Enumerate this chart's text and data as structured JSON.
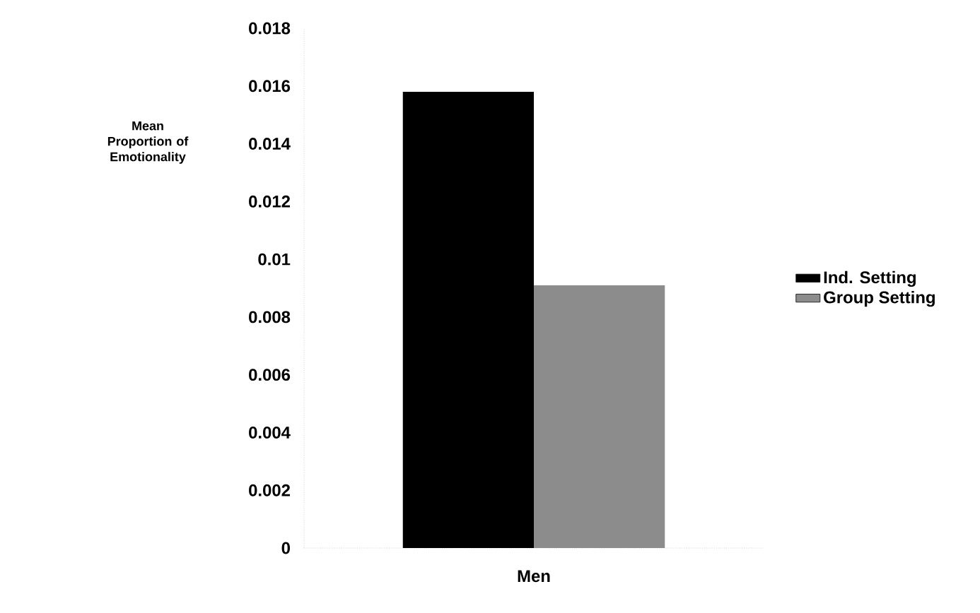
{
  "chart_data": {
    "type": "bar",
    "ylabel": "Mean Proportion of Emotionality",
    "categories": [
      "Men"
    ],
    "series": [
      {
        "name": "Ind. Setting",
        "color": "#000000",
        "values": [
          0.0158
        ]
      },
      {
        "name": "Group Setting",
        "color": "#8c8c8c",
        "values": [
          0.0091
        ]
      }
    ],
    "ylim": [
      0,
      0.018
    ],
    "yticks": [
      0,
      0.002,
      0.004,
      0.006,
      0.008,
      {
        "value": 0.01,
        "label": "0.01"
      },
      0.012,
      0.014,
      0.016,
      0.018
    ],
    "legend": "right"
  }
}
